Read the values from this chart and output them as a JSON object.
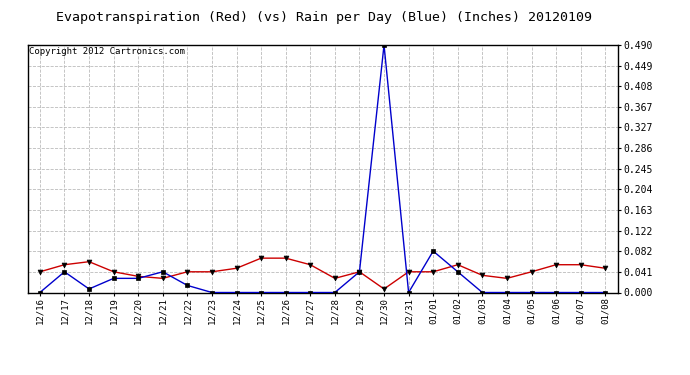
{
  "title": "Evapotranspiration (Red) (vs) Rain per Day (Blue) (Inches) 20120109",
  "copyright": "Copyright 2012 Cartronics.com",
  "x_labels": [
    "12/16",
    "12/17",
    "12/18",
    "12/19",
    "12/20",
    "12/21",
    "12/22",
    "12/23",
    "12/24",
    "12/25",
    "12/26",
    "12/27",
    "12/28",
    "12/29",
    "12/30",
    "12/31",
    "01/01",
    "01/02",
    "01/03",
    "01/04",
    "01/05",
    "01/06",
    "01/07",
    "01/08"
  ],
  "red_data": [
    0.041,
    0.055,
    0.061,
    0.041,
    0.032,
    0.028,
    0.041,
    0.041,
    0.048,
    0.068,
    0.068,
    0.055,
    0.028,
    0.041,
    0.007,
    0.041,
    0.041,
    0.055,
    0.034,
    0.028,
    0.041,
    0.055,
    0.055,
    0.048
  ],
  "blue_data": [
    0.0,
    0.041,
    0.007,
    0.028,
    0.028,
    0.041,
    0.014,
    0.0,
    0.0,
    0.0,
    0.0,
    0.0,
    0.0,
    0.041,
    0.49,
    0.0,
    0.082,
    0.041,
    0.0,
    0.0,
    0.0,
    0.0,
    0.0,
    0.0
  ],
  "ylim": [
    0.0,
    0.49
  ],
  "yticks": [
    0.0,
    0.041,
    0.082,
    0.122,
    0.163,
    0.204,
    0.245,
    0.286,
    0.327,
    0.367,
    0.408,
    0.449,
    0.49
  ],
  "red_color": "#cc0000",
  "blue_color": "#0000cc",
  "background_color": "#ffffff",
  "grid_color": "#bbbbbb",
  "title_fontsize": 9.5,
  "copyright_fontsize": 6.5,
  "tick_fontsize": 6.5,
  "ytick_fontsize": 7.0
}
